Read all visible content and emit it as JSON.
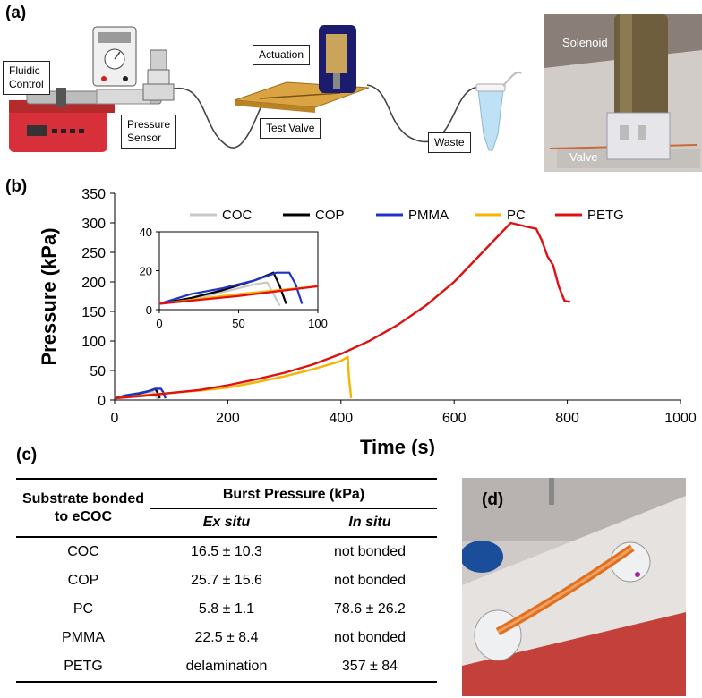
{
  "panels": {
    "a": "(a)",
    "b": "(b)",
    "c": "(c)",
    "d": "(d)"
  },
  "setup": {
    "fluidic_control": "Fluidic\nControl",
    "pressure_sensor": "Pressure\nSensor",
    "actuation": "Actuation",
    "test_valve": "Test Valve",
    "waste": "Waste",
    "solenoid": "Solenoid",
    "valve": "Valve"
  },
  "chart_data": {
    "type": "line",
    "xlabel": "Time (s)",
    "ylabel": "Pressure (kPa)",
    "xlim": [
      0,
      1000
    ],
    "ylim": [
      0,
      350
    ],
    "x_ticks": [
      0,
      200,
      400,
      600,
      800,
      1000
    ],
    "y_ticks": [
      0,
      50,
      100,
      150,
      200,
      250,
      300,
      350
    ],
    "legend": "top",
    "series": [
      {
        "name": "COC",
        "color": "#c8c8c8",
        "x": [
          0,
          20,
          40,
          60,
          68,
          72,
          76
        ],
        "y": [
          3,
          5,
          9,
          13,
          14,
          8,
          2
        ]
      },
      {
        "name": "COP",
        "color": "#000000",
        "x": [
          0,
          20,
          40,
          60,
          72,
          76,
          80
        ],
        "y": [
          3,
          6,
          10,
          15,
          19,
          12,
          3
        ]
      },
      {
        "name": "PMMA",
        "color": "#1f33c8",
        "x": [
          0,
          20,
          40,
          60,
          74,
          82,
          86,
          90
        ],
        "y": [
          3,
          8,
          11,
          15,
          19,
          19,
          13,
          3
        ]
      },
      {
        "name": "PC",
        "color": "#f5b400",
        "x": [
          0,
          50,
          100,
          150,
          200,
          250,
          300,
          350,
          400,
          412,
          414,
          418
        ],
        "y": [
          3,
          8,
          12,
          16,
          21,
          30,
          40,
          52,
          66,
          73,
          40,
          3
        ]
      },
      {
        "name": "PETG",
        "color": "#e01010",
        "x": [
          0,
          50,
          100,
          150,
          200,
          250,
          300,
          350,
          400,
          450,
          500,
          550,
          600,
          650,
          700,
          730,
          745,
          755,
          765,
          775,
          785,
          795,
          805
        ],
        "y": [
          3,
          7,
          12,
          17,
          25,
          35,
          46,
          60,
          78,
          100,
          127,
          160,
          200,
          250,
          300,
          293,
          290,
          270,
          243,
          228,
          192,
          168,
          166
        ]
      }
    ],
    "inset": {
      "xlim": [
        0,
        100
      ],
      "ylim": [
        0,
        40
      ],
      "x_ticks": [
        0,
        50,
        100
      ],
      "y_ticks": [
        0,
        20,
        40
      ]
    }
  },
  "table": {
    "substrate_header": "Substrate bonded to eCOC",
    "burst_header": "Burst Pressure (kPa)",
    "ex_situ": "Ex situ",
    "in_situ": "In situ",
    "rows": [
      {
        "substrate": "COC",
        "ex": "16.5 ± 10.3",
        "in": "not bonded"
      },
      {
        "substrate": "COP",
        "ex": "25.7 ± 15.6",
        "in": "not bonded"
      },
      {
        "substrate": "PC",
        "ex": "5.8 ± 1.1",
        "in": "78.6 ± 26.2"
      },
      {
        "substrate": "PMMA",
        "ex": "22.5 ± 8.4",
        "in": "not bonded"
      },
      {
        "substrate": "PETG",
        "ex": "delamination",
        "in": "357 ± 84"
      }
    ]
  }
}
